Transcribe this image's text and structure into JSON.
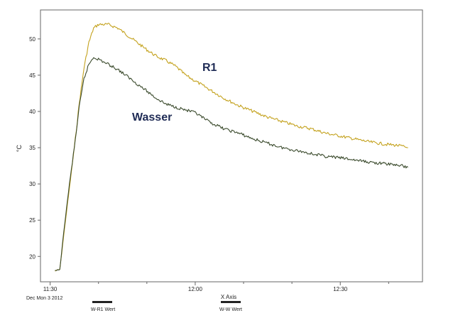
{
  "chart_data": {
    "type": "line",
    "title": "",
    "xlabel": "X Axis",
    "ylabel": "°C",
    "date_label": "Dec Mon 3 2012",
    "x_ticks": [
      "11:30",
      "12:00",
      "12:30"
    ],
    "y_ticks": [
      20,
      25,
      30,
      35,
      40,
      45,
      50
    ],
    "x_range": [
      "11:28",
      "12:47"
    ],
    "ylim": [
      16.5,
      54
    ],
    "grid": false,
    "legend": {
      "placement": "bottom",
      "entries": [
        "W-R1 Wert",
        "W-W Wert"
      ]
    },
    "annotations": [
      "R1",
      "Wasser"
    ],
    "series": [
      {
        "name": "R1",
        "color": "#c4a21e",
        "x": [
          "11:31",
          "11:32",
          "11:33",
          "11:34",
          "11:35",
          "11:36",
          "11:37",
          "11:38",
          "11:39",
          "11:40",
          "11:42",
          "11:44",
          "11:46",
          "11:48",
          "11:50",
          "11:52",
          "11:54",
          "11:56",
          "11:58",
          "12:00",
          "12:03",
          "12:06",
          "12:09",
          "12:12",
          "12:15",
          "12:18",
          "12:21",
          "12:24",
          "12:27",
          "12:30",
          "12:33",
          "12:36",
          "12:39",
          "12:42",
          "12:44"
        ],
        "values": [
          18.0,
          18.2,
          24.0,
          29.5,
          35.0,
          41.0,
          46.0,
          49.5,
          51.5,
          52.0,
          52.0,
          51.5,
          50.5,
          49.5,
          48.5,
          47.6,
          47.0,
          46.2,
          45.0,
          44.2,
          43.0,
          41.8,
          40.8,
          40.0,
          39.2,
          38.6,
          38.0,
          37.6,
          37.0,
          36.6,
          36.2,
          35.8,
          35.5,
          35.3,
          35.0
        ]
      },
      {
        "name": "Wasser",
        "color": "#3a4a2c",
        "x": [
          "11:31",
          "11:32",
          "11:33",
          "11:34",
          "11:35",
          "11:36",
          "11:37",
          "11:38",
          "11:39",
          "11:40",
          "11:42",
          "11:44",
          "11:46",
          "11:48",
          "11:50",
          "11:52",
          "11:54",
          "11:56",
          "11:58",
          "12:00",
          "12:03",
          "12:06",
          "12:09",
          "12:12",
          "12:15",
          "12:18",
          "12:21",
          "12:24",
          "12:27",
          "12:30",
          "12:33",
          "12:36",
          "12:39",
          "12:42",
          "12:44"
        ],
        "values": [
          18.0,
          18.2,
          24.5,
          30.0,
          35.0,
          40.5,
          44.5,
          46.5,
          47.5,
          47.2,
          46.5,
          45.8,
          44.8,
          43.8,
          42.8,
          41.8,
          41.0,
          40.6,
          40.2,
          39.8,
          38.5,
          37.6,
          37.0,
          36.2,
          35.6,
          35.0,
          34.6,
          34.2,
          33.8,
          33.6,
          33.3,
          33.0,
          32.8,
          32.6,
          32.3
        ]
      }
    ]
  }
}
